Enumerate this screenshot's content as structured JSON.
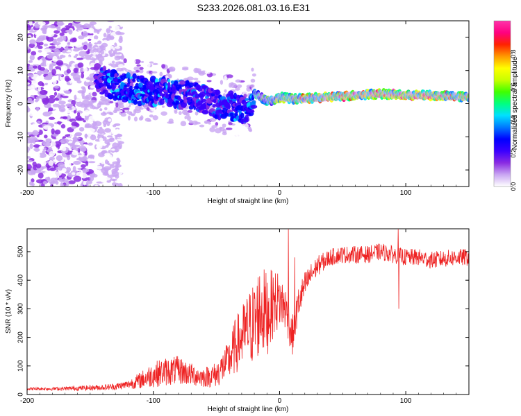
{
  "title": "S233.2026.081.03.16.E31",
  "chart_data": [
    {
      "type": "heatmap",
      "name": "spectrogram",
      "xlabel": "Height of straight line (km)",
      "ylabel": "Frequency (Hz)",
      "xlim": [
        -200,
        150
      ],
      "ylim": [
        -25,
        25
      ],
      "xticks": [
        -200,
        -100,
        0,
        100
      ],
      "xtick_labels": [
        "-200",
        "-100",
        "0",
        "100"
      ],
      "yticks": [
        -20,
        -10,
        0,
        10,
        20
      ],
      "ytick_labels": [
        "-20",
        "-10",
        "0",
        "10",
        "20"
      ],
      "grid": false,
      "colorbar": {
        "label": "Normalized spectral amplitude",
        "range": [
          0,
          1
        ],
        "ticks": [
          0.0,
          0.2,
          0.4,
          0.6,
          0.8
        ],
        "tick_labels": [
          "0.0",
          "0.2",
          "0.4",
          "0.6",
          "0.8"
        ],
        "colors": [
          "#ffffff",
          "#c9a6f2",
          "#8a2be2",
          "#3b00ff",
          "#0000ff",
          "#0078ff",
          "#00e0ff",
          "#00ff80",
          "#40ff00",
          "#c8ff00",
          "#ffff00",
          "#ff9900",
          "#ff2200",
          "#ff0080",
          "#ff33aa"
        ]
      },
      "ridge": {
        "description_free_values_only": true,
        "x": [
          -145,
          -135,
          -125,
          -110,
          -95,
          -80,
          -65,
          -50,
          -35,
          -25,
          -20,
          -15,
          -10,
          -5,
          0,
          10,
          20,
          40,
          60,
          80,
          100,
          120,
          150
        ],
        "freq_hz": [
          8,
          6,
          5,
          4,
          3.5,
          3,
          2,
          0,
          -1,
          -2,
          3,
          2,
          1,
          1,
          2,
          1.5,
          1.5,
          2,
          2.5,
          3,
          2.5,
          2.5,
          2
        ],
        "amplitude": [
          0.3,
          0.4,
          0.45,
          0.45,
          0.4,
          0.4,
          0.35,
          0.35,
          0.4,
          0.45,
          0.5,
          0.55,
          0.6,
          0.6,
          0.7,
          0.75,
          0.85,
          0.9,
          0.9,
          0.95,
          0.9,
          0.9,
          0.85
        ]
      },
      "noise_region_x": [
        -200,
        -150
      ],
      "noise_amplitude": 0.15
    },
    {
      "type": "line",
      "name": "snr",
      "xlabel": "Height of straight line (km)",
      "ylabel": "SNR (10 * v/v)",
      "xlim": [
        -200,
        150
      ],
      "ylim": [
        0,
        580
      ],
      "xticks": [
        -200,
        -100,
        0,
        100
      ],
      "xtick_labels": [
        "-200",
        "-100",
        "0",
        "100"
      ],
      "yticks": [
        0,
        100,
        200,
        300,
        400,
        500
      ],
      "ytick_labels": [
        "0",
        "100",
        "200",
        "300",
        "400",
        "500"
      ],
      "grid": false,
      "color": "#ee2222",
      "x": [
        -200,
        -180,
        -160,
        -140,
        -130,
        -120,
        -110,
        -100,
        -90,
        -80,
        -70,
        -60,
        -50,
        -40,
        -35,
        -30,
        -25,
        -20,
        -15,
        -10,
        -5,
        0,
        5,
        10,
        15,
        20,
        25,
        30,
        40,
        50,
        60,
        70,
        80,
        90,
        100,
        110,
        120,
        130,
        140,
        150
      ],
      "y": [
        20,
        20,
        22,
        25,
        28,
        35,
        50,
        70,
        80,
        85,
        70,
        60,
        70,
        120,
        170,
        200,
        230,
        250,
        300,
        280,
        320,
        330,
        300,
        200,
        320,
        380,
        420,
        450,
        480,
        490,
        490,
        490,
        500,
        490,
        480,
        480,
        470,
        475,
        480,
        480
      ],
      "noise_amplitude": [
        5,
        6,
        8,
        10,
        12,
        15,
        30,
        45,
        50,
        50,
        40,
        35,
        45,
        70,
        100,
        110,
        130,
        150,
        160,
        150,
        120,
        100,
        80,
        70,
        60,
        50,
        40,
        35,
        30,
        30,
        30,
        30,
        30,
        30,
        30,
        30,
        30,
        30,
        30,
        30
      ],
      "spikes": [
        {
          "x": -17,
          "y": 410
        },
        {
          "x": -12,
          "y": 360
        },
        {
          "x": 7,
          "y": 578
        },
        {
          "x": 12,
          "y": 480
        },
        {
          "x": 94,
          "y": 578
        },
        {
          "x": 94.5,
          "y": 300
        }
      ]
    }
  ]
}
